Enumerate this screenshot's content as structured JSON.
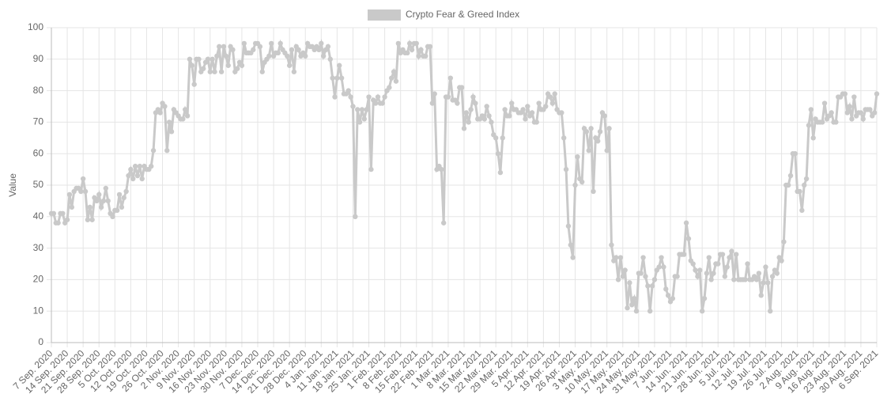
{
  "chart_data": {
    "type": "line",
    "ylabel": "Value",
    "ylim": [
      0,
      100
    ],
    "yticks": [
      0,
      10,
      20,
      30,
      40,
      50,
      60,
      70,
      80,
      90,
      100
    ],
    "grid": true,
    "legend": "top",
    "categories": [
      "7 Sep. 2020",
      null,
      null,
      null,
      null,
      null,
      null,
      "14 Sep. 2020",
      null,
      null,
      null,
      null,
      null,
      null,
      "21 Sep. 2020",
      null,
      null,
      null,
      null,
      null,
      null,
      "28 Sep. 2020",
      null,
      null,
      null,
      null,
      null,
      null,
      "5 Oct. 2020",
      null,
      null,
      null,
      null,
      null,
      null,
      "12 Oct. 2020",
      null,
      null,
      null,
      null,
      null,
      null,
      "19 Oct. 2020",
      null,
      null,
      null,
      null,
      null,
      null,
      "26 Oct. 2020",
      null,
      null,
      null,
      null,
      null,
      null,
      "2 Nov. 2020",
      null,
      null,
      null,
      null,
      null,
      null,
      "9 Nov. 2020",
      null,
      null,
      null,
      null,
      null,
      null,
      "16 Nov. 2020",
      null,
      null,
      null,
      null,
      null,
      null,
      "23 Nov. 2020",
      null,
      null,
      null,
      null,
      null,
      null,
      "30 Nov. 2020",
      null,
      null,
      null,
      null,
      null,
      null,
      "7 Dec. 2020",
      null,
      null,
      null,
      null,
      null,
      null,
      "14 Dec. 2020",
      null,
      null,
      null,
      null,
      null,
      null,
      "21 Dec. 2020",
      null,
      null,
      null,
      null,
      null,
      null,
      "28 Dec. 2020",
      null,
      null,
      null,
      null,
      null,
      null,
      "4 Jan. 2021",
      null,
      null,
      null,
      null,
      null,
      null,
      "11 Jan. 2021",
      null,
      null,
      null,
      null,
      null,
      null,
      "18 Jan. 2021",
      null,
      null,
      null,
      null,
      null,
      null,
      "25 Jan. 2021",
      null,
      null,
      null,
      null,
      null,
      null,
      "1 Feb. 2021",
      null,
      null,
      null,
      null,
      null,
      null,
      "8 Feb. 2021",
      null,
      null,
      null,
      null,
      null,
      null,
      "15 Feb. 2021",
      null,
      null,
      null,
      null,
      null,
      null,
      "22 Feb. 2021",
      null,
      null,
      null,
      null,
      null,
      null,
      "1 Mar. 2021",
      null,
      null,
      null,
      null,
      null,
      null,
      "8 Mar. 2021",
      null,
      null,
      null,
      null,
      null,
      null,
      "15 Mar. 2021",
      null,
      null,
      null,
      null,
      null,
      null,
      "22 Mar. 2021",
      null,
      null,
      null,
      null,
      null,
      null,
      "29 Mar. 2021",
      null,
      null,
      null,
      null,
      null,
      null,
      "5 Apr. 2021",
      null,
      null,
      null,
      null,
      null,
      null,
      "12 Apr. 2021",
      null,
      null,
      null,
      null,
      null,
      null,
      "19 Apr. 2021",
      null,
      null,
      null,
      null,
      null,
      null,
      "26 Apr. 2021",
      null,
      null,
      null,
      null,
      null,
      null,
      "3 May. 2021",
      null,
      null,
      null,
      null,
      null,
      null,
      "10 May. 2021",
      null,
      null,
      null,
      null,
      null,
      null,
      "17 May. 2021",
      null,
      null,
      null,
      null,
      null,
      null,
      "24 May. 2021",
      null,
      null,
      null,
      null,
      null,
      null,
      "31 May. 2021",
      null,
      null,
      null,
      null,
      null,
      null,
      "7 Jun. 2021",
      null,
      null,
      null,
      null,
      null,
      null,
      "14 Jun. 2021",
      null,
      null,
      null,
      null,
      null,
      null,
      "21 Jun. 2021",
      null,
      null,
      null,
      null,
      null,
      null,
      "28 Jun. 2021",
      null,
      null,
      null,
      null,
      null,
      null,
      "5 Jul. 2021",
      null,
      null,
      null,
      null,
      null,
      null,
      "12 Jul. 2021",
      null,
      null,
      null,
      null,
      null,
      null,
      "19 Jul. 2021",
      null,
      null,
      null,
      null,
      null,
      null,
      "26 Jul. 2021",
      null,
      null,
      null,
      null,
      null,
      null,
      "2 Aug. 2021",
      null,
      null,
      null,
      null,
      null,
      null,
      "9 Aug. 2021",
      null,
      null,
      null,
      null,
      null,
      null,
      "16 Aug. 2021",
      null,
      null,
      null,
      null,
      null,
      null,
      "23 Aug. 2021",
      null,
      null,
      null,
      null,
      null,
      null,
      "30 Aug. 2021",
      null,
      null,
      null,
      null,
      null,
      null,
      "6 Sep. 2021"
    ],
    "series": [
      {
        "name": "Crypto Fear & Greed Index",
        "color": "#c9c9c9",
        "values": [
          41,
          41,
          38,
          38,
          41,
          41,
          38,
          39,
          47,
          43,
          48,
          49,
          49,
          48,
          52,
          48,
          39,
          43,
          39,
          46,
          45,
          47,
          43,
          45,
          49,
          45,
          41,
          40,
          42,
          42,
          47,
          43,
          46,
          48,
          53,
          55,
          52,
          56,
          53,
          56,
          52,
          56,
          55,
          55,
          56,
          61,
          73,
          74,
          73,
          76,
          75,
          61,
          70,
          67,
          74,
          73,
          72,
          71,
          71,
          74,
          72,
          90,
          88,
          82,
          90,
          90,
          86,
          87,
          89,
          90,
          86,
          90,
          86,
          91,
          94,
          86,
          94,
          91,
          88,
          94,
          93,
          86,
          87,
          89,
          88,
          95,
          92,
          92,
          92,
          93,
          95,
          95,
          94,
          86,
          89,
          90,
          91,
          95,
          91,
          92,
          92,
          95,
          93,
          92,
          91,
          88,
          93,
          86,
          94,
          93,
          91,
          92,
          91,
          95,
          94,
          94,
          93,
          94,
          93,
          95,
          91,
          93,
          94,
          90,
          84,
          78,
          84,
          88,
          84,
          79,
          79,
          80,
          78,
          75,
          40,
          74,
          70,
          74,
          71,
          74,
          78,
          55,
          77,
          76,
          78,
          76,
          76,
          78,
          80,
          81,
          84,
          86,
          83,
          95,
          92,
          93,
          92,
          92,
          95,
          93,
          95,
          95,
          91,
          93,
          91,
          91,
          94,
          94,
          76,
          79,
          55,
          56,
          55,
          38,
          78,
          78,
          84,
          77,
          77,
          76,
          81,
          81,
          68,
          73,
          70,
          74,
          78,
          76,
          71,
          71,
          72,
          71,
          75,
          72,
          70,
          66,
          65,
          60,
          54,
          65,
          74,
          72,
          72,
          76,
          74,
          74,
          73,
          73,
          74,
          71,
          75,
          72,
          73,
          70,
          70,
          76,
          74,
          74,
          75,
          79,
          78,
          76,
          79,
          74,
          73,
          73,
          65,
          55,
          37,
          31,
          27,
          50,
          59,
          52,
          51,
          68,
          67,
          61,
          68,
          48,
          65,
          64,
          67,
          73,
          72,
          61,
          68,
          31,
          26,
          27,
          20,
          27,
          21,
          23,
          11,
          19,
          12,
          14,
          10,
          22,
          22,
          27,
          21,
          18,
          10,
          18,
          20,
          23,
          24,
          27,
          24,
          17,
          15,
          13,
          14,
          21,
          21,
          28,
          28,
          28,
          38,
          33,
          26,
          25,
          23,
          21,
          23,
          10,
          14,
          22,
          27,
          20,
          22,
          25,
          25,
          28,
          28,
          21,
          24,
          27,
          29,
          20,
          28,
          20,
          20,
          20,
          20,
          25,
          20,
          20,
          21,
          20,
          22,
          15,
          19,
          24,
          19,
          10,
          21,
          23,
          22,
          27,
          26,
          32,
          50,
          50,
          53,
          60,
          60,
          48,
          48,
          42,
          50,
          52,
          69,
          74,
          65,
          71,
          70,
          70,
          70,
          76,
          71,
          72,
          73,
          70,
          70,
          78,
          78,
          79,
          79,
          73,
          75,
          71,
          78,
          72,
          73,
          73,
          71,
          74,
          74,
          74,
          72,
          73,
          79
        ]
      }
    ]
  }
}
